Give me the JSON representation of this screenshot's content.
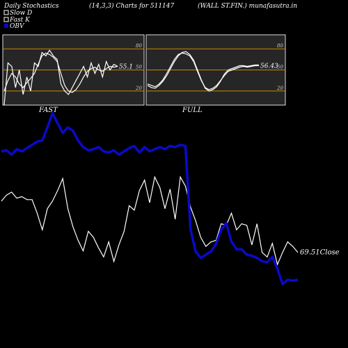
{
  "header": {
    "left": "Daily Stochastics",
    "middle": "(14,3,3) Charts for 511147",
    "right": "(WALL ST.FIN.) munafasutra.in"
  },
  "legend": [
    {
      "label": "Slow  D",
      "color": "#ffffff"
    },
    {
      "label": "Fast K",
      "color": "#ffffff"
    },
    {
      "label": "OBV",
      "color": "#0000cc"
    }
  ],
  "colors": {
    "background": "#000000",
    "panel_bg": "#262626",
    "band_lines": "#cc8800",
    "price_line": "#ffffff",
    "obv_line": "#0a0ac8"
  },
  "chart_data": [
    {
      "type": "line",
      "title": "FAST",
      "ylim": [
        0,
        100
      ],
      "yticks": [
        20,
        50,
        80
      ],
      "last_value_label": "55.1",
      "series": [
        {
          "values": [
            20,
            35,
            45,
            40,
            30,
            25,
            32,
            38,
            45,
            58,
            70,
            74,
            72,
            68,
            62,
            45,
            28,
            20,
            18,
            22,
            30,
            40,
            48,
            52,
            54,
            50,
            48,
            52,
            55,
            54,
            55
          ]
        },
        {
          "values": [
            0,
            60,
            55,
            25,
            50,
            15,
            40,
            20,
            60,
            55,
            75,
            70,
            78,
            70,
            65,
            30,
            20,
            15,
            25,
            35,
            45,
            55,
            40,
            60,
            45,
            58,
            40,
            62,
            50,
            58,
            55
          ]
        }
      ]
    },
    {
      "type": "line",
      "title": "FULL",
      "ylim": [
        0,
        100
      ],
      "yticks": [
        20,
        50,
        80
      ],
      "last_value_label": "56.43",
      "series": [
        {
          "values": [
            30,
            28,
            26,
            30,
            36,
            45,
            55,
            65,
            72,
            74,
            73,
            70,
            62,
            48,
            35,
            25,
            22,
            24,
            28,
            35,
            42,
            48,
            50,
            52,
            54,
            55,
            54,
            55,
            56,
            56
          ]
        },
        {
          "values": [
            28,
            25,
            24,
            28,
            34,
            42,
            52,
            62,
            70,
            75,
            76,
            72,
            64,
            50,
            36,
            24,
            20,
            22,
            26,
            34,
            44,
            50,
            52,
            54,
            56,
            56,
            55,
            56,
            57,
            57
          ]
        }
      ]
    },
    {
      "type": "line",
      "last_value_label": "69.51Close",
      "series": [
        {
          "values": [
            72,
            76,
            78,
            74,
            75,
            73,
            73,
            64,
            53,
            67,
            72,
            79,
            87,
            67,
            55,
            46,
            39,
            52,
            48,
            41,
            35,
            45,
            32,
            43,
            52,
            69,
            66,
            79,
            86,
            71,
            88,
            81,
            67,
            80,
            60,
            88,
            82,
            68,
            59,
            48,
            42,
            45,
            46,
            57,
            56,
            64,
            53,
            57,
            56,
            43,
            57,
            38,
            35,
            44,
            30,
            38,
            45,
            42,
            38
          ]
        },
        {
          "values": [
            160,
            161,
            157,
            162,
            160,
            163,
            166,
            169,
            170,
            182,
            195,
            186,
            177,
            182,
            179,
            170,
            164,
            161,
            162,
            164,
            160,
            159,
            161,
            157,
            160,
            163,
            165,
            159,
            164,
            160,
            162,
            164,
            162,
            165,
            164,
            166,
            165,
            88,
            68,
            62,
            65,
            68,
            75,
            88,
            94,
            77,
            70,
            70,
            65,
            64,
            62,
            59,
            58,
            63,
            52,
            38,
            42,
            41,
            42
          ]
        }
      ]
    }
  ]
}
